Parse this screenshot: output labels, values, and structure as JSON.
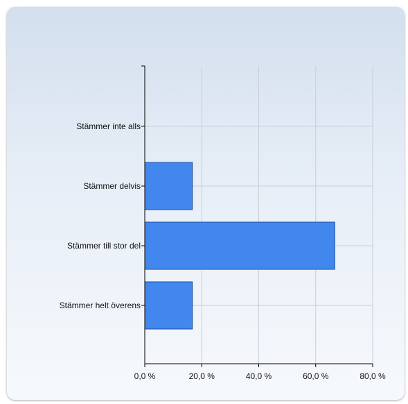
{
  "chart_data": {
    "type": "bar",
    "orientation": "horizontal",
    "categories": [
      "Stämmer inte alls",
      "Stämmer delvis",
      "Stämmer till stor del",
      "Stämmer helt överens"
    ],
    "values": [
      0,
      16.7,
      66.7,
      16.7
    ],
    "xlim": [
      0,
      80
    ],
    "x_ticks": [
      "0,0 %",
      "20,0 %",
      "40,0 %",
      "60,0 %",
      "80,0 %"
    ],
    "grid": true,
    "bar_color": "#4287ee",
    "bar_border_color": "#1f4f99"
  }
}
